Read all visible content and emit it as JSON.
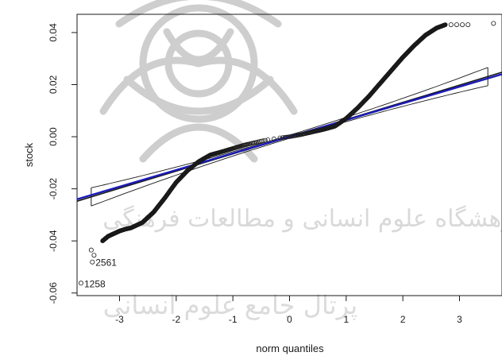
{
  "chart_data": {
    "type": "scatter",
    "title": "",
    "xlabel": "norm quantiles",
    "ylabel": "stock",
    "xlim": [
      -3.75,
      3.75
    ],
    "ylim": [
      -0.061,
      0.047
    ],
    "x_ticks": [
      -3,
      -2,
      -1,
      0,
      1,
      2,
      3
    ],
    "x_tick_labels": [
      "-3",
      "-2",
      "-1",
      "0",
      "1",
      "2",
      "3"
    ],
    "y_ticks": [
      -0.06,
      -0.04,
      -0.02,
      0.0,
      0.02,
      0.04
    ],
    "y_tick_labels": [
      "-0.06",
      "-0.04",
      "-0.02",
      "0.00",
      "0.02",
      "0.04"
    ],
    "grid": false,
    "legend": "none",
    "reference_line": {
      "name": "",
      "slope": 0.0066,
      "intercept": 0.0,
      "color": "#1a1a1a"
    },
    "fitted_line": {
      "slope": 0.0064,
      "intercept": 0.0,
      "color": "#1a1ab8"
    },
    "confidence_envelope": {
      "x_lo": -3.5,
      "x_hi": 3.5,
      "half_width_at_ends": 0.0035,
      "half_width_at_center": 0.0006,
      "color": "#1a1a1a"
    },
    "quantile_curve": {
      "x": [
        -3.3,
        -3.2,
        -3.1,
        -3.0,
        -2.9,
        -2.8,
        -2.6,
        -2.4,
        -2.2,
        -2.0,
        -1.8,
        -1.6,
        -1.4,
        -1.2,
        -1.0,
        -0.8,
        -0.6,
        -0.4,
        -0.2,
        0.0,
        0.2,
        0.4,
        0.6,
        0.8,
        1.0,
        1.2,
        1.4,
        1.6,
        1.8,
        2.0,
        2.2,
        2.4,
        2.6,
        2.75
      ],
      "y": [
        -0.04,
        -0.0382,
        -0.0372,
        -0.0362,
        -0.0355,
        -0.035,
        -0.033,
        -0.029,
        -0.0235,
        -0.0175,
        -0.013,
        -0.0095,
        -0.007,
        -0.0058,
        -0.0045,
        -0.0032,
        -0.0022,
        -0.0012,
        -0.0005,
        0.0,
        0.0008,
        0.0018,
        0.0028,
        0.004,
        0.007,
        0.011,
        0.0155,
        0.0205,
        0.0255,
        0.0305,
        0.035,
        0.039,
        0.0418,
        0.043
      ],
      "point_color": "#1a1a1a"
    },
    "tail_points": [
      {
        "x": -3.45,
        "y": -0.0455
      },
      {
        "x": -3.5,
        "y": -0.0435
      },
      {
        "x": 2.85,
        "y": 0.043
      },
      {
        "x": 2.95,
        "y": 0.043
      },
      {
        "x": 3.05,
        "y": 0.043
      },
      {
        "x": 3.15,
        "y": 0.043
      },
      {
        "x": 3.6,
        "y": 0.0435
      }
    ],
    "labeled_points": [
      {
        "label": "2561",
        "x": -3.48,
        "y": -0.0481
      },
      {
        "label": "1258",
        "x": -3.68,
        "y": -0.0562
      }
    ]
  },
  "watermark": {
    "line1": "پژوهشگاه علوم انسانی و مطالعات فرهنگی",
    "line2": "پرتال جامع علوم انسانی"
  }
}
